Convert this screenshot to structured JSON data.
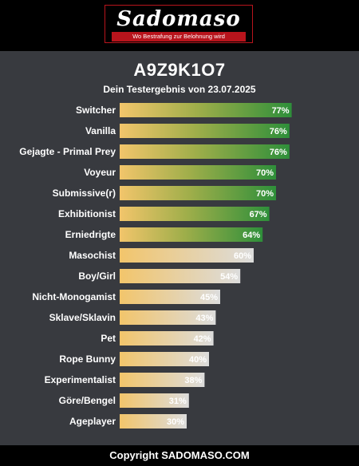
{
  "header": {
    "logo_text": "Sadomaso",
    "tagline": "Wo Bestrafung zur Belohnung wird"
  },
  "result": {
    "code": "A9Z9K1O7",
    "subtitle": "Dein Testergebnis von 23.07.2025"
  },
  "footer": {
    "copyright": "Copyright SADOMASO.COM"
  },
  "colors": {
    "background": "#383a3f",
    "bar_start": "#f2c56b",
    "bar_green": "#2e8f3a",
    "bar_light": "#dcdcdc"
  },
  "chart_data": {
    "type": "bar",
    "orientation": "horizontal",
    "title": "",
    "xlabel": "",
    "ylabel": "",
    "xlim": [
      0,
      100
    ],
    "categories": [
      "Switcher",
      "Vanilla",
      "Gejagte - Primal Prey",
      "Voyeur",
      "Submissive(r)",
      "Exhibitionist",
      "Erniedrigte",
      "Masochist",
      "Boy/Girl",
      "Nicht-Monogamist",
      "Sklave/Sklavin",
      "Pet",
      "Rope Bunny",
      "Experimentalist",
      "Göre/Bengel",
      "Ageplayer"
    ],
    "values": [
      77,
      76,
      76,
      70,
      70,
      67,
      64,
      60,
      54,
      45,
      43,
      42,
      40,
      38,
      31,
      30
    ],
    "value_labels": [
      "77%",
      "76%",
      "76%",
      "70%",
      "70%",
      "67%",
      "64%",
      "60%",
      "54%",
      "45%",
      "43%",
      "42%",
      "40%",
      "38%",
      "31%",
      "30%"
    ],
    "highlight_threshold": 64
  }
}
